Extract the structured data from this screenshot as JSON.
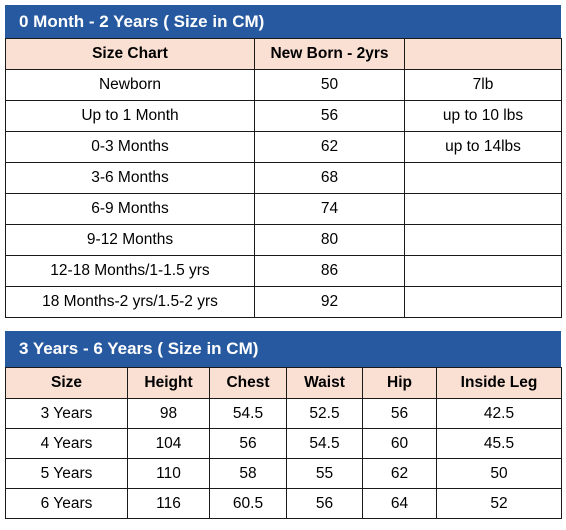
{
  "table1": {
    "title": "0 Month - 2 Years ( Size in CM)",
    "headers": [
      "Size Chart",
      "New Born - 2yrs",
      ""
    ],
    "rows": [
      [
        "Newborn",
        "50",
        "7lb"
      ],
      [
        "Up to 1 Month",
        "56",
        "up to 10 lbs"
      ],
      [
        "0-3 Months",
        "62",
        "up to 14lbs"
      ],
      [
        "3-6 Months",
        "68",
        ""
      ],
      [
        "6-9 Months",
        "74",
        ""
      ],
      [
        "9-12 Months",
        "80",
        ""
      ],
      [
        "12-18 Months/1-1.5 yrs",
        "86",
        ""
      ],
      [
        "18 Months-2 yrs/1.5-2 yrs",
        "92",
        ""
      ]
    ]
  },
  "table2": {
    "title": "3 Years - 6 Years ( Size in CM)",
    "headers": [
      "Size",
      "Height",
      "Chest",
      "Waist",
      "Hip",
      "Inside Leg"
    ],
    "rows": [
      [
        "3 Years",
        "98",
        "54.5",
        "52.5",
        "56",
        "42.5"
      ],
      [
        "4 Years",
        "104",
        "56",
        "54.5",
        "60",
        "45.5"
      ],
      [
        "5 Years",
        "110",
        "58",
        "55",
        "62",
        "50"
      ],
      [
        "6 Years",
        "116",
        "60.5",
        "56",
        "64",
        "52"
      ]
    ]
  },
  "colors": {
    "title_bar": "#2659a0",
    "header_fill": "#fadfd3"
  }
}
